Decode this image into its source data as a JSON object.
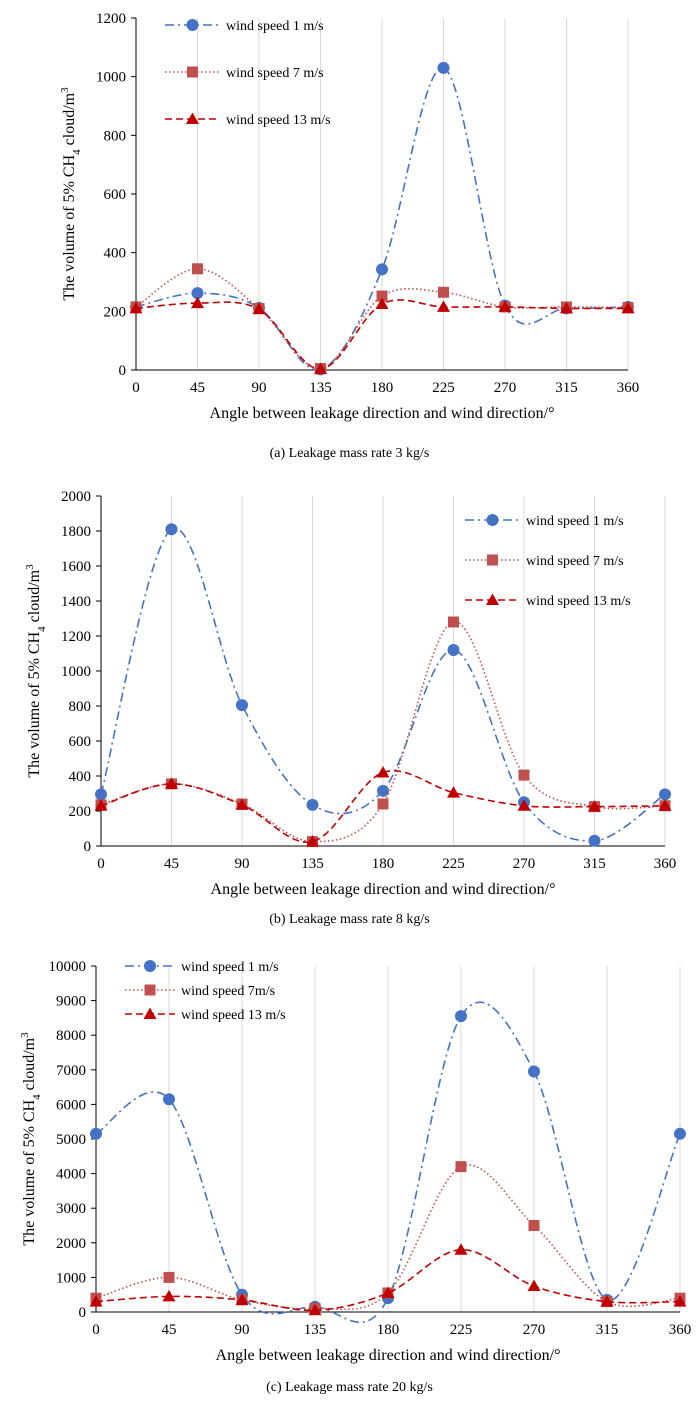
{
  "charts": [
    {
      "caption": "(a)  Leakage mass rate 3 kg/s",
      "chart_data": {
        "type": "line",
        "xlabel": "Angle between leakage direction and wind direction/°",
        "ylabel_pre": "The volume of 5% CH",
        "ylabel_sub": "4",
        "ylabel_post": " cloud/m",
        "ylabel_sup": "3",
        "x": [
          0,
          45,
          90,
          135,
          180,
          225,
          270,
          315,
          360
        ],
        "xlim": [
          0,
          360
        ],
        "ylim": [
          0,
          1200
        ],
        "yticks": [
          0,
          200,
          400,
          600,
          800,
          1000,
          1200
        ],
        "grid": "vertical",
        "legend": "top-left",
        "series": [
          {
            "name": "wind speed 1 m/s",
            "marker": "circle",
            "color": "#4472c4",
            "dash": "dashdot",
            "values": [
              215,
              262,
              212,
              2,
              343,
              1030,
              220,
              210,
              215
            ]
          },
          {
            "name": "wind speed 7 m/s",
            "marker": "square",
            "color": "#c0504d",
            "dash": "dotted",
            "values": [
              215,
              345,
              210,
              5,
              252,
              265,
              215,
              215,
              213
            ]
          },
          {
            "name": "wind speed 13 m/s",
            "marker": "triangle",
            "color": "#c00000",
            "dash": "dashed",
            "values": [
              210,
              228,
              207,
              3,
              225,
              215,
              215,
              210,
              210
            ]
          }
        ]
      }
    },
    {
      "caption": "(b)  Leakage mass rate 8 kg/s",
      "chart_data": {
        "type": "line",
        "xlabel": "Angle between leakage direction and wind direction/°",
        "ylabel_pre": "The volume of 5% CH",
        "ylabel_sub": "4",
        "ylabel_post": " cloud/m",
        "ylabel_sup": "3",
        "x": [
          0,
          45,
          90,
          135,
          180,
          225,
          270,
          315,
          360
        ],
        "xlim": [
          0,
          360
        ],
        "ylim": [
          0,
          2000
        ],
        "yticks": [
          0,
          200,
          400,
          600,
          800,
          1000,
          1200,
          1400,
          1600,
          1800,
          2000
        ],
        "grid": "vertical",
        "legend": "top-right",
        "series": [
          {
            "name": "wind speed 1 m/s",
            "marker": "circle",
            "color": "#4472c4",
            "dash": "dashdot",
            "values": [
              295,
              1810,
              805,
              235,
              315,
              1120,
              250,
              30,
              295
            ]
          },
          {
            "name": "wind speed 7 m/s",
            "marker": "square",
            "color": "#c0504d",
            "dash": "dotted",
            "values": [
              235,
              355,
              240,
              25,
              240,
              1280,
              405,
              225,
              230
            ]
          },
          {
            "name": "wind speed 13 m/s",
            "marker": "triangle",
            "color": "#c00000",
            "dash": "dashed",
            "values": [
              230,
              355,
              235,
              25,
              420,
              305,
              230,
              225,
              230
            ]
          }
        ]
      }
    },
    {
      "caption": "(c) Leakage mass rate 20 kg/s",
      "chart_data": {
        "type": "line",
        "xlabel": "Angle between leakage direction and wind direction/°",
        "ylabel_pre": "The volume of 5% CH",
        "ylabel_sub": "4",
        "ylabel_post": " cloud/m",
        "ylabel_sup": "3",
        "x": [
          0,
          45,
          90,
          135,
          180,
          225,
          270,
          315,
          360
        ],
        "xlim": [
          0,
          360
        ],
        "ylim": [
          0,
          10000
        ],
        "yticks": [
          0,
          1000,
          2000,
          3000,
          4000,
          5000,
          6000,
          7000,
          8000,
          9000,
          10000
        ],
        "grid": "vertical",
        "legend": "top-left",
        "series": [
          {
            "name": "wind speed 1 m/s",
            "marker": "circle",
            "color": "#4472c4",
            "dash": "dashdot",
            "values": [
              5150,
              6150,
              500,
              150,
              400,
              8550,
              6950,
              350,
              5150
            ]
          },
          {
            "name": "wind speed 7m/s",
            "marker": "square",
            "color": "#c0504d",
            "dash": "dotted",
            "values": [
              400,
              1000,
              350,
              100,
              550,
              4200,
              2500,
              300,
              400
            ]
          },
          {
            "name": "wind speed 13 m/s",
            "marker": "triangle",
            "color": "#c00000",
            "dash": "dashed",
            "values": [
              300,
              450,
              350,
              50,
              550,
              1800,
              750,
              300,
              300
            ]
          }
        ]
      }
    }
  ]
}
